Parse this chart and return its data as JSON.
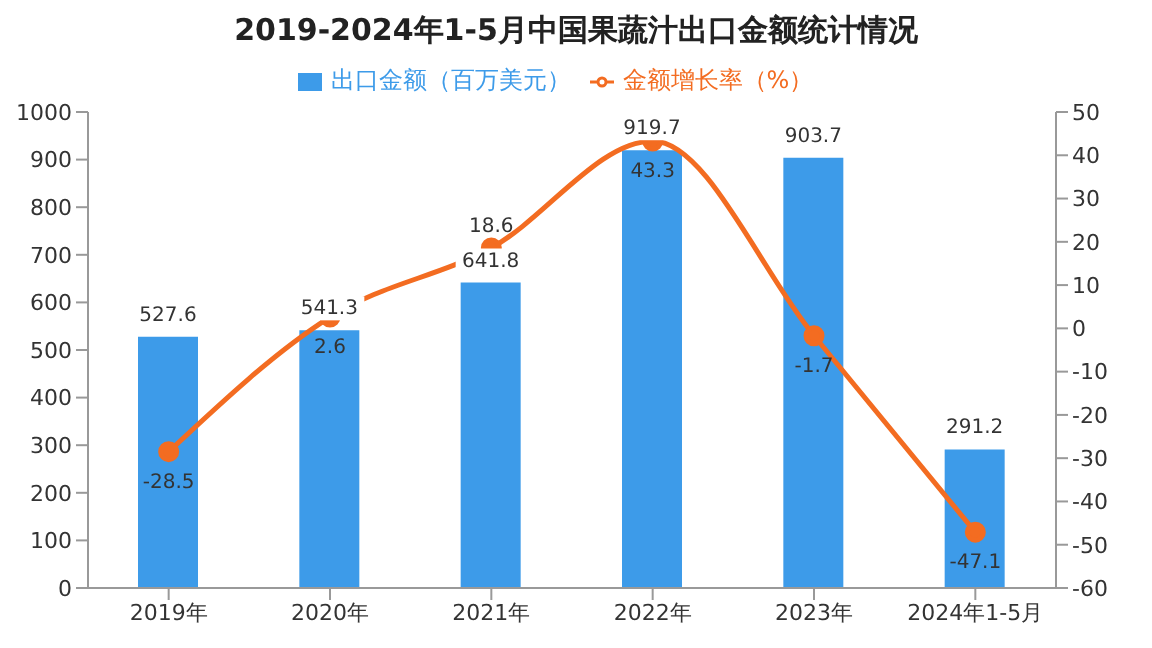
{
  "chart_data": {
    "type": "bar",
    "title": "2019-2024年1-5月中国果蔬汁出口金额统计情况",
    "categories": [
      "2019年",
      "2020年",
      "2021年",
      "2022年",
      "2023年",
      "2024年1-5月"
    ],
    "series": [
      {
        "name": "出口金额（百万美元）",
        "color": "#3d9be9",
        "values": [
          527.6,
          541.3,
          641.8,
          919.7,
          903.7,
          291.2
        ]
      },
      {
        "name": "金额增长率（%）",
        "type": "line",
        "axis": "y2",
        "color": "#f36c21",
        "values": [
          -28.5,
          2.6,
          18.6,
          43.3,
          -1.7,
          -47.1
        ]
      }
    ],
    "ylim": [
      0,
      1000
    ],
    "yticks": [
      0,
      100,
      200,
      300,
      400,
      500,
      600,
      700,
      800,
      900,
      1000
    ],
    "y2lim": [
      -60,
      50
    ],
    "y2ticks": [
      -60,
      -50,
      -40,
      -30,
      -20,
      -10,
      0,
      10,
      20,
      30,
      40,
      50
    ],
    "data_labels": true,
    "legend": "top",
    "grid": false,
    "marker": "circle",
    "line_style": "solid"
  }
}
